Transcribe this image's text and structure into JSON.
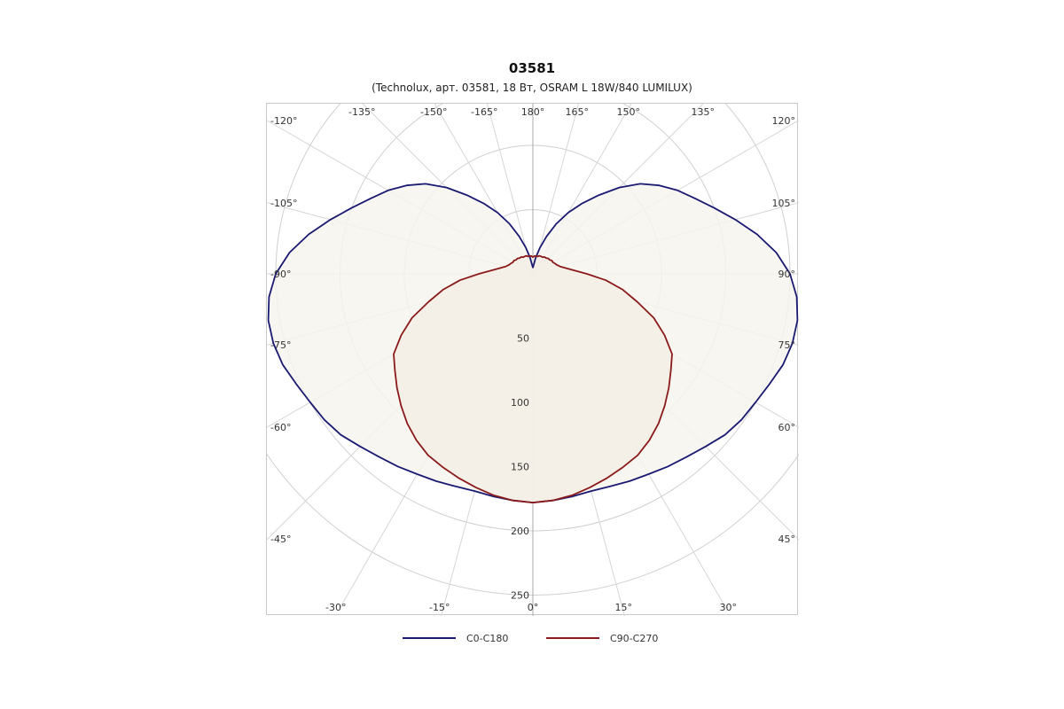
{
  "chart_data": {
    "type": "polar",
    "title": "03581",
    "subtitle": "(Technolux, арт. 03581, 18 Вт, OSRAM L 18W/840 LUMILUX)",
    "radial_axis": {
      "ticks": [
        50,
        100,
        150,
        200,
        250
      ],
      "tick_labels": [
        "50",
        "100",
        "150",
        "200",
        "250"
      ],
      "max": 250
    },
    "angle_labels": {
      "left": [
        "-120°",
        "-135°",
        "-150°",
        "-165°",
        "-105°",
        "-90°",
        "-75°",
        "-60°",
        "-45°",
        "-30°",
        "-15°"
      ],
      "right": [
        "120°",
        "135°",
        "150°",
        "165°",
        "105°",
        "90°",
        "75°",
        "60°",
        "45°",
        "30°",
        "15°"
      ],
      "top_center": "180°",
      "bottom_center": "0°"
    },
    "series": [
      {
        "name": "C0-C180",
        "color": "#1a1a72",
        "fill": "#f6f5ee",
        "angles": [
          0,
          5,
          10,
          15,
          20,
          25,
          30,
          35,
          40,
          45,
          50,
          55,
          60,
          65,
          70,
          75,
          80,
          85,
          90,
          95,
          100,
          105,
          110,
          115,
          120,
          125,
          130,
          135,
          140,
          145,
          150,
          155,
          160,
          165,
          170,
          175,
          180
        ],
        "values": [
          178,
          177,
          176,
          175,
          176,
          178,
          180,
          183,
          186,
          190,
          195,
          198,
          200,
          203,
          207,
          209,
          209,
          206,
          200,
          190,
          177,
          163,
          150,
          139,
          130,
          120,
          109,
          95,
          80,
          67,
          55,
          43,
          31,
          21,
          13,
          7,
          5
        ]
      },
      {
        "name": "C90-C270",
        "color": "#8b1a1a",
        "fill": "#f3eee6",
        "angles": [
          0,
          5,
          10,
          15,
          20,
          25,
          30,
          35,
          40,
          45,
          50,
          55,
          60,
          65,
          70,
          75,
          80,
          85,
          90,
          95,
          100,
          105,
          110,
          115,
          120,
          125,
          130,
          135,
          140,
          145,
          150,
          155,
          160,
          165,
          170,
          175,
          180
        ],
        "values": [
          178,
          177,
          175,
          172,
          169,
          166,
          163,
          158,
          152,
          145,
          138,
          131,
          125,
          113,
          100,
          84,
          71,
          57,
          42,
          32,
          26,
          22,
          20,
          19,
          18,
          18,
          17,
          17,
          16,
          16,
          15,
          15,
          15,
          14,
          14,
          14,
          13
        ]
      }
    ],
    "grid": true,
    "legend": {
      "position": "bottom-center"
    }
  }
}
